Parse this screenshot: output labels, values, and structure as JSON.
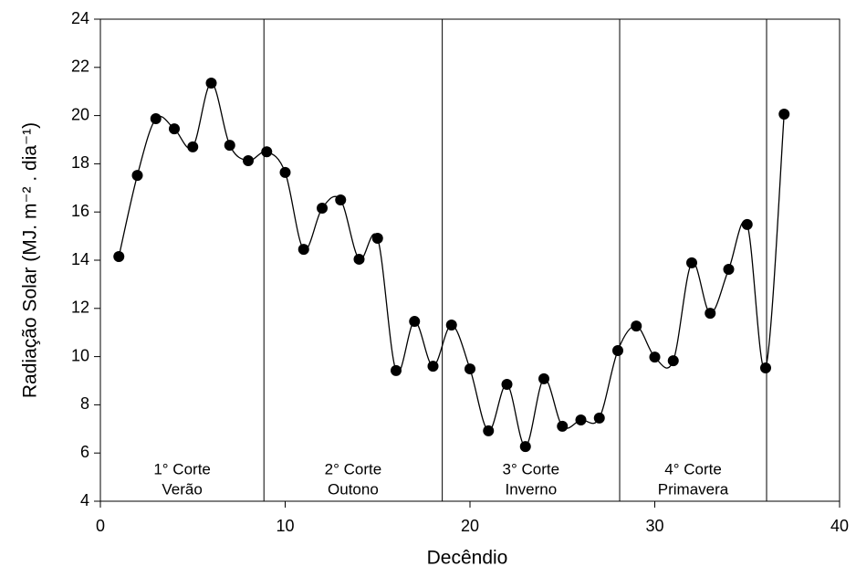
{
  "chart_data": {
    "type": "line",
    "x_label": "Decêndio",
    "y_label": "Radiação Solar (MJ. m⁻² . dia⁻¹)",
    "x": [
      1,
      2,
      3,
      4,
      5,
      6,
      7,
      8,
      9,
      10,
      11,
      12,
      13,
      14,
      15,
      16,
      17,
      18,
      19,
      20,
      21,
      22,
      23,
      24,
      25,
      26,
      27,
      28,
      29,
      30,
      31,
      32,
      33,
      34,
      35,
      36,
      37
    ],
    "series": [
      {
        "color": "#000000",
        "values": [
          14.15,
          17.52,
          19.87,
          19.45,
          18.7,
          21.35,
          18.77,
          18.13,
          18.5,
          17.64,
          14.45,
          16.16,
          16.5,
          14.04,
          14.91,
          9.42,
          11.46,
          9.6,
          11.31,
          9.49,
          6.92,
          8.85,
          6.27,
          9.08,
          7.11,
          7.37,
          7.45,
          10.25,
          11.27,
          9.98,
          9.83,
          13.89,
          11.8,
          13.62,
          15.48,
          9.53,
          20.06
        ]
      }
    ],
    "xlim": [
      0,
      40
    ],
    "xticks": [
      0,
      10,
      20,
      30,
      40
    ],
    "ylim": [
      4,
      24
    ],
    "yticks": [
      4,
      6,
      8,
      10,
      12,
      14,
      16,
      18,
      20,
      22,
      24
    ],
    "dividers": [
      8.85,
      18.5,
      28.1,
      36.05
    ],
    "regions": [
      [
        "1° Corte",
        "Verão"
      ],
      [
        "2° Corte",
        "Outono"
      ],
      [
        "3° Corte",
        "Inverno"
      ],
      [
        "4° Corte",
        "Primavera"
      ]
    ]
  }
}
